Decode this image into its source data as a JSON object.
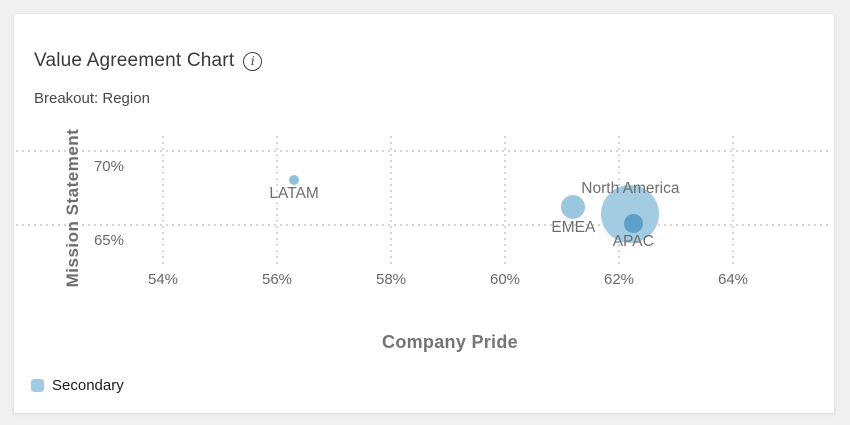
{
  "page": {
    "background_color": "#f0f0f1",
    "card_color": "#ffffff"
  },
  "header": {
    "title": "Value Agreement Chart",
    "info_icon_glyph": "i",
    "breakout_label": "Breakout: Region"
  },
  "chart_data": {
    "type": "scatter",
    "subtype": "bubble",
    "title": "Value Agreement Chart",
    "subtitle": "Breakout: Region",
    "xlabel": "Company Pride",
    "ylabel": "Mission Statement",
    "x_ticks": [
      {
        "label": "54%",
        "value": 54
      },
      {
        "label": "56%",
        "value": 56
      },
      {
        "label": "58%",
        "value": 58
      },
      {
        "label": "60%",
        "value": 60
      },
      {
        "label": "62%",
        "value": 62
      },
      {
        "label": "64%",
        "value": 64
      }
    ],
    "y_ticks": [
      {
        "label": "70%",
        "value": 70
      },
      {
        "label": "65%",
        "value": 65
      }
    ],
    "xlim": [
      52.4,
      65.8
    ],
    "ylim": [
      62.0,
      70.9
    ],
    "grid": "dotted",
    "grid_color": "#d6d6d6",
    "points": [
      {
        "label": "LATAM",
        "x": 56.3,
        "y": 68.0,
        "size": 5,
        "color": "#8fc0dc",
        "label_position": "below"
      },
      {
        "label": "EMEA",
        "x": 61.2,
        "y": 66.2,
        "size": 12,
        "color": "#9ac6e0",
        "label_position": "below"
      },
      {
        "label": "North America",
        "x": 62.2,
        "y": 65.7,
        "size": 29,
        "color": "#a3cbe2",
        "label_position": "above"
      },
      {
        "label": "APAC",
        "x": 62.25,
        "y": 65.1,
        "size": 9.5,
        "color": "#5e9fc7",
        "label_position": "below"
      }
    ],
    "legend": {
      "position": "bottom-left",
      "entries": [
        {
          "label": "Secondary",
          "color": "#a0cbe2"
        }
      ]
    }
  }
}
